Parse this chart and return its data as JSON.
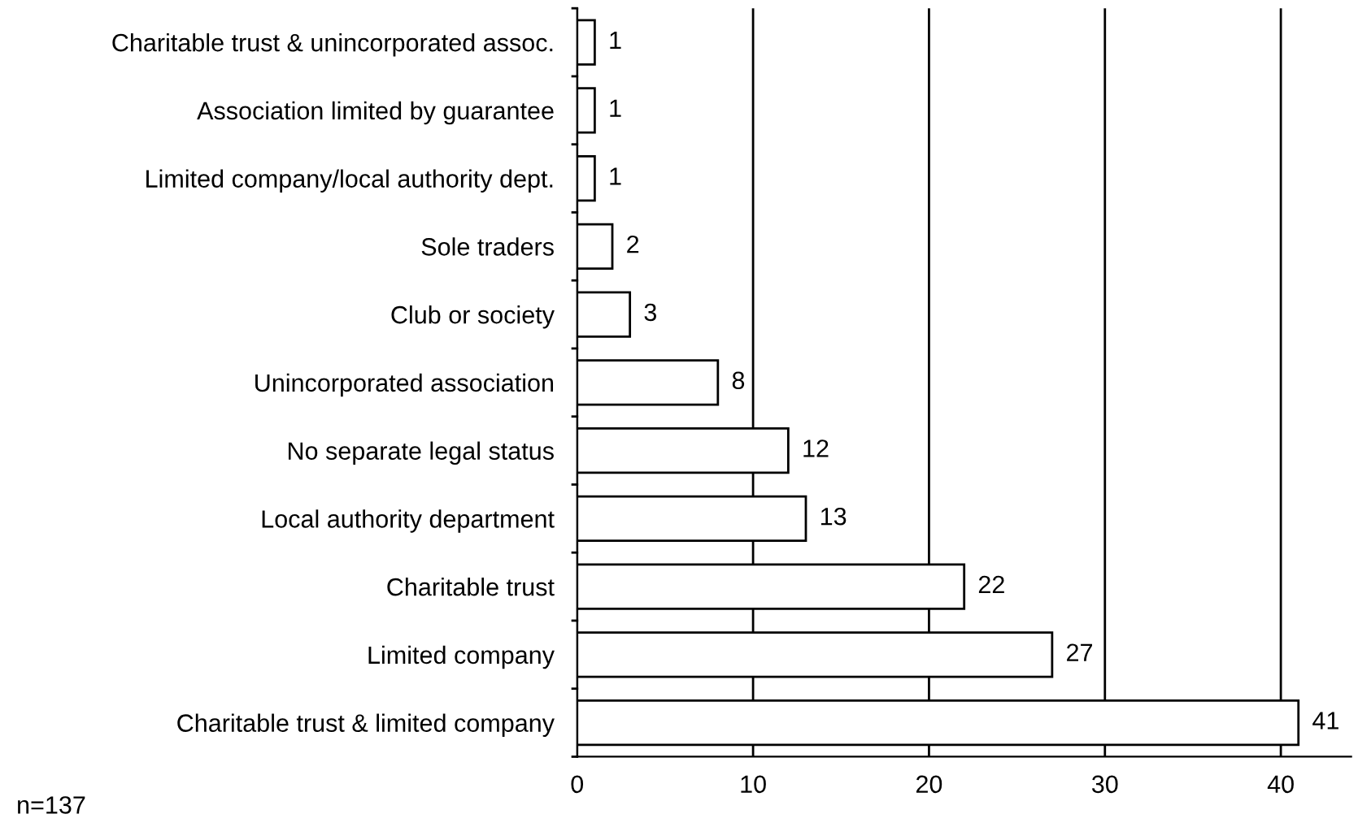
{
  "chart_data": {
    "type": "bar",
    "orientation": "horizontal",
    "categories": [
      "Charitable trust & unincorporated assoc.",
      "Association limited by guarantee",
      "Limited company/local authority dept.",
      "Sole traders",
      "Club or society",
      "Unincorporated association",
      "No separate legal status",
      "Local authority department",
      "Charitable trust",
      "Limited company",
      "Charitable trust & limited company"
    ],
    "values": [
      1,
      1,
      1,
      2,
      3,
      8,
      12,
      13,
      22,
      27,
      41
    ],
    "color": "#ffffff",
    "xlim": [
      0,
      44
    ],
    "xticks": [
      0,
      10,
      20,
      30,
      40
    ],
    "grid": "x",
    "data_labels": true,
    "legend": false,
    "annotations": [
      "n=137"
    ]
  }
}
